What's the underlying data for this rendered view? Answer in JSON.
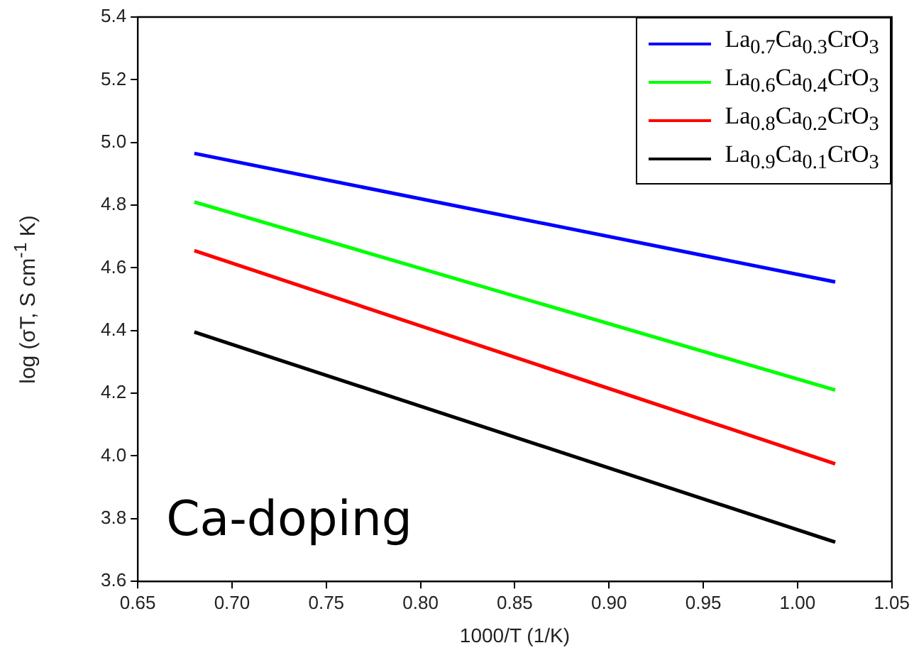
{
  "chart_data": {
    "type": "line",
    "xlabel": "1000/T (1/K)",
    "ylabel": "log (σT, S cm$^{-1}$ K)",
    "xlim": [
      0.65,
      1.05
    ],
    "xticks": [
      0.65,
      {
        "value": 0.7,
        "label": "0.70"
      },
      0.75,
      {
        "value": 0.8,
        "label": "0.80"
      },
      0.85,
      {
        "value": 0.9,
        "label": "0.90"
      },
      0.95,
      {
        "value": 1.0,
        "label": "1.00"
      },
      1.05
    ],
    "ylim": [
      3.6,
      5.4
    ],
    "yticks": [
      3.6,
      3.8,
      {
        "value": 4.0,
        "label": "4.0"
      },
      4.2,
      4.4,
      4.6,
      4.8,
      {
        "value": 5.0,
        "label": "5.0"
      },
      5.2,
      5.4
    ],
    "grid": false,
    "legend": "top right",
    "marker": "none",
    "line_style": "solid",
    "annotations": [
      "Ca-doping"
    ],
    "x": [
      0.68,
      1.02
    ],
    "series": [
      {
        "name": "La$_{0.7}$Ca$_{0.3}$CrO$_{3}$",
        "color": "#0000ff",
        "values": [
          4.965,
          4.555
        ]
      },
      {
        "name": "La$_{0.6}$Ca$_{0.4}$CrO$_{3}$",
        "color": "#00ff00",
        "values": [
          4.81,
          4.21
        ]
      },
      {
        "name": "La$_{0.8}$Ca$_{0.2}$CrO$_{3}$",
        "color": "#ff0000",
        "values": [
          4.655,
          3.975
        ]
      },
      {
        "name": "La$_{0.9}$Ca$_{0.1}$CrO$_{3}$",
        "color": "#000000",
        "values": [
          4.395,
          3.725
        ]
      }
    ]
  }
}
